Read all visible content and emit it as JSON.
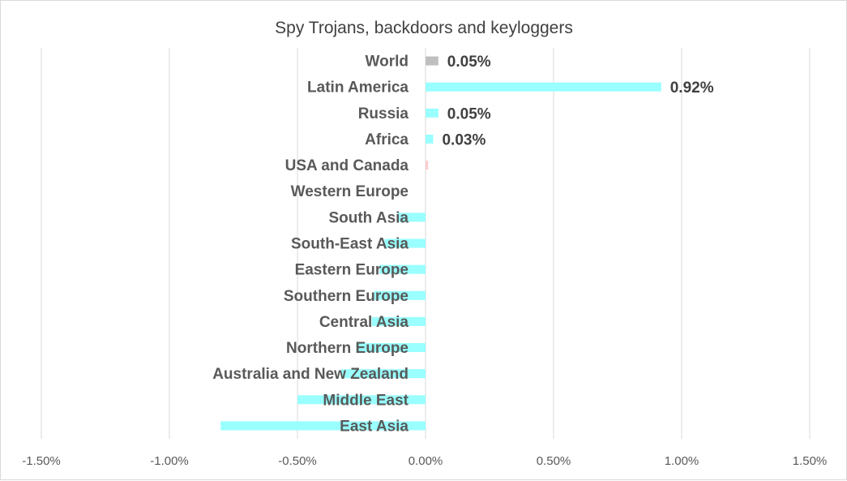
{
  "chart_data": {
    "type": "bar",
    "orientation": "horizontal",
    "title": "Spy Trojans, backdoors and keyloggers",
    "xlabel": "",
    "ylabel": "",
    "categories": [
      "World",
      "Latin America",
      "Russia",
      "Africa",
      "USA and Canada",
      "Western Europe",
      "South Asia",
      "South-East Asia",
      "Eastern Europe",
      "Southern Europe",
      "Central Asia",
      "Northern Europe",
      "Australia and New Zealand",
      "Middle East",
      "East Asia"
    ],
    "values": [
      0.05,
      0.92,
      0.05,
      0.03,
      0.01,
      0.0,
      -0.11,
      -0.16,
      -0.18,
      -0.2,
      -0.21,
      -0.27,
      -0.33,
      -0.5,
      -0.8
    ],
    "value_unit": "%",
    "data_labels": [
      "0.05%",
      "0.92%",
      "0.05%",
      "0.03%",
      "",
      "",
      "",
      "",
      "",
      "",
      "",
      "",
      "",
      "",
      ""
    ],
    "bar_colors": [
      "#bfbfbf",
      "#99ffff",
      "#99ffff",
      "#99ffff",
      "#ffcccc",
      "#99ffff",
      "#99ffff",
      "#99ffff",
      "#99ffff",
      "#99ffff",
      "#99ffff",
      "#99ffff",
      "#99ffff",
      "#99ffff",
      "#99ffff"
    ],
    "xlim": [
      -1.5,
      1.5
    ],
    "xticks": [
      -1.5,
      -1.0,
      -0.5,
      0.0,
      0.5,
      1.0,
      1.5
    ],
    "xtick_labels": [
      "-1.50%",
      "-1.00%",
      "-0.50%",
      "0.00%",
      "0.50%",
      "1.00%",
      "1.50%"
    ],
    "grid": true,
    "legend": "none"
  }
}
